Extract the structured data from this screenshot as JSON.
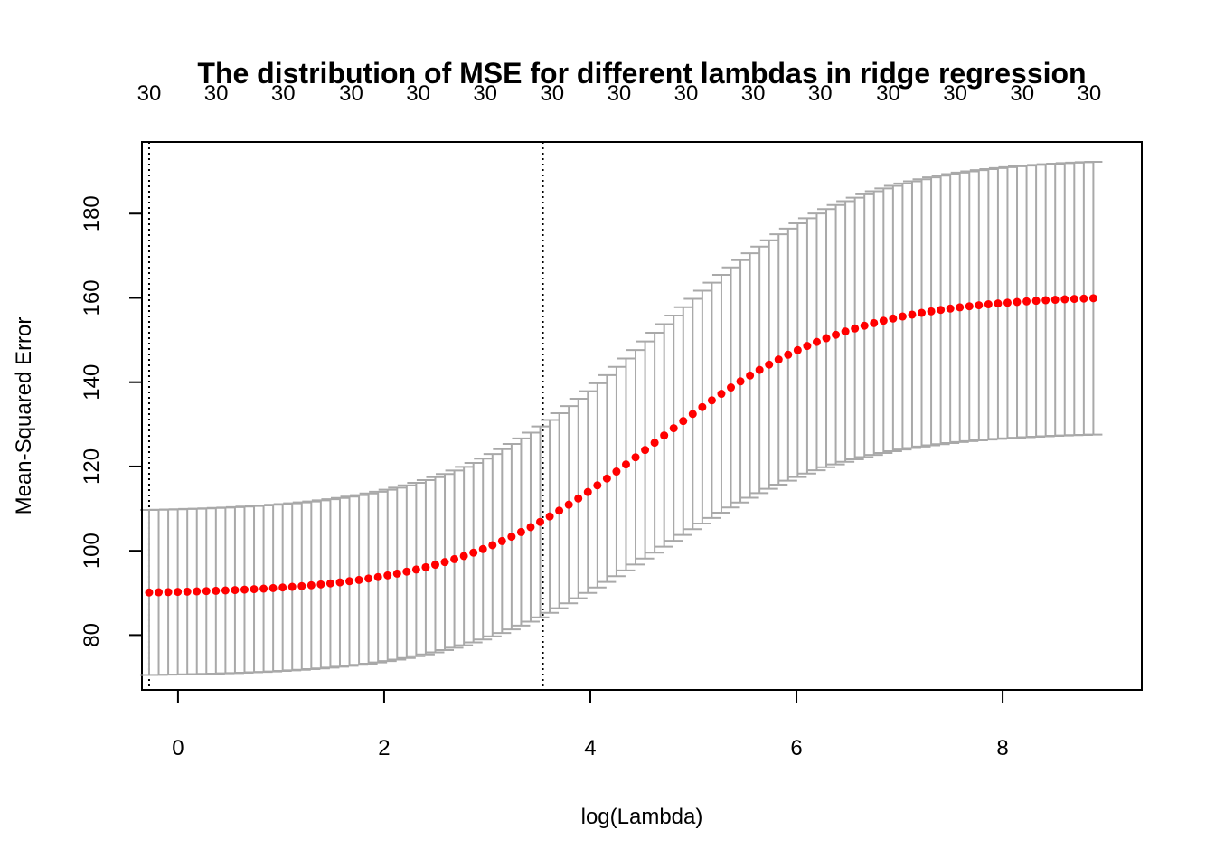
{
  "chart_data": {
    "type": "scatter",
    "title": "The distribution of MSE for different lambdas in ridge regression",
    "xlabel": "log(Lambda)",
    "ylabel": "Mean-Squared Error",
    "xlim": [
      -0.35,
      9.35
    ],
    "ylim": [
      67,
      197
    ],
    "x_ticks": [
      0,
      2,
      4,
      6,
      8
    ],
    "y_ticks": [
      80,
      100,
      120,
      140,
      160,
      180
    ],
    "top_axis": {
      "positions": [
        -0.28,
        0.37,
        1.02,
        1.68,
        2.33,
        2.98,
        3.63,
        4.28,
        4.93,
        5.58,
        6.23,
        6.89,
        7.54,
        8.19,
        8.84
      ],
      "labels": [
        "30",
        "30",
        "30",
        "30",
        "30",
        "30",
        "30",
        "30",
        "30",
        "30",
        "30",
        "30",
        "30",
        "30",
        "30"
      ]
    },
    "vlines": [
      -0.28,
      3.54
    ],
    "x_range": [
      -0.28,
      8.88
    ],
    "n_points": 100,
    "mse_sigmoid_model": {
      "base": 89.7,
      "amplitude": 71,
      "center": 4.6,
      "scale": 0.95
    },
    "error_sigmoid_model": {
      "base": 19.5,
      "amplitude": 13,
      "center": 4.6,
      "scale": 0.95
    },
    "colors": {
      "points": "#ff0000",
      "errorbars": "#a9a9a9",
      "axes": "#000000"
    }
  }
}
